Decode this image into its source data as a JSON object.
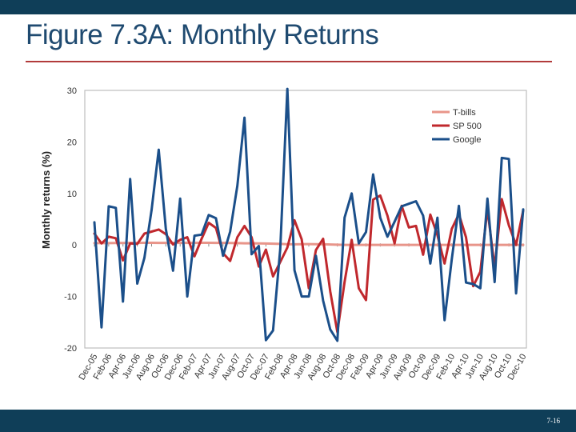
{
  "slide": {
    "title": "Figure 7.3A: Monthly Returns",
    "page_number": "7-16"
  },
  "colors": {
    "header_bar": "#0f3e58",
    "title_text": "#1f4a70",
    "title_rule": "#b23b3b",
    "tbills": "#e8958a",
    "sp500": "#c0282d",
    "google": "#1b4f8a"
  },
  "chart_data": {
    "type": "line",
    "title": "",
    "xlabel": "",
    "ylabel": "Monthly returns (%)",
    "ylim": [
      -20,
      30
    ],
    "yticks": [
      -20,
      -10,
      0,
      10,
      20,
      30
    ],
    "grid": false,
    "legend_position": "top-right",
    "x": [
      "Dec-05",
      "Jan-06",
      "Feb-06",
      "Mar-06",
      "Apr-06",
      "May-06",
      "Jun-06",
      "Jul-06",
      "Aug-06",
      "Sep-06",
      "Oct-06",
      "Nov-06",
      "Dec-06",
      "Jan-07",
      "Feb-07",
      "Mar-07",
      "Apr-07",
      "May-07",
      "Jun-07",
      "Jul-07",
      "Aug-07",
      "Sep-07",
      "Oct-07",
      "Nov-07",
      "Dec-07",
      "Jan-08",
      "Feb-08",
      "Mar-08",
      "Apr-08",
      "May-08",
      "Jun-08",
      "Jul-08",
      "Aug-08",
      "Sep-08",
      "Oct-08",
      "Nov-08",
      "Dec-08",
      "Jan-09",
      "Feb-09",
      "Mar-09",
      "Apr-09",
      "May-09",
      "Jun-09",
      "Jul-09",
      "Aug-09",
      "Sep-09",
      "Oct-09",
      "Nov-09",
      "Dec-09",
      "Jan-10",
      "Feb-10",
      "Mar-10",
      "Apr-10",
      "May-10",
      "Jun-10",
      "Jul-10",
      "Aug-10",
      "Sep-10",
      "Oct-10",
      "Nov-10",
      "Dec-10"
    ],
    "xtick_labels": [
      "Dec-05",
      "Feb-06",
      "Apr-06",
      "Jun-06",
      "Aug-06",
      "Oct-06",
      "Dec-06",
      "Feb-07",
      "Apr-07",
      "Jun-07",
      "Aug-07",
      "Oct-07",
      "Dec-07",
      "Feb-08",
      "Apr-08",
      "Jun-08",
      "Aug-08",
      "Oct-08",
      "Dec-08",
      "Feb-09",
      "Apr-09",
      "Jun-09",
      "Aug-09",
      "Oct-09",
      "Dec-09",
      "Feb-10",
      "Apr-10",
      "Jun-10",
      "Aug-10",
      "Oct-10",
      "Dec-10"
    ],
    "series": [
      {
        "name": "T-bills",
        "color": "#e8958a",
        "values": [
          0.35,
          0.35,
          0.36,
          0.38,
          0.39,
          0.4,
          0.41,
          0.42,
          0.42,
          0.41,
          0.41,
          0.4,
          0.4,
          0.41,
          0.41,
          0.42,
          0.42,
          0.41,
          0.4,
          0.38,
          0.36,
          0.33,
          0.32,
          0.3,
          0.28,
          0.25,
          0.2,
          0.15,
          0.12,
          0.15,
          0.17,
          0.15,
          0.14,
          0.1,
          0.05,
          0.02,
          0.01,
          0.01,
          0.01,
          0.02,
          0.02,
          0.01,
          0.01,
          0.01,
          0.01,
          0.01,
          0.01,
          0.01,
          0.01,
          0.01,
          0.01,
          0.01,
          0.01,
          0.01,
          0.01,
          0.01,
          0.01,
          0.01,
          0.01,
          0.01,
          0.01
        ]
      },
      {
        "name": "SP 500",
        "color": "#c0282d",
        "values": [
          2.2,
          0.3,
          1.6,
          1.3,
          -3.0,
          0.3,
          0.2,
          2.2,
          2.6,
          3.0,
          2.1,
          0.1,
          1.0,
          1.5,
          -2.2,
          1.2,
          4.3,
          3.3,
          -1.6,
          -3.1,
          1.5,
          3.7,
          1.5,
          -4.2,
          -0.9,
          -6.1,
          -3.3,
          -0.5,
          4.8,
          1.1,
          -8.4,
          -1.0,
          1.2,
          -9.0,
          -16.9,
          -7.2,
          1.0,
          -8.4,
          -10.7,
          8.8,
          9.6,
          5.7,
          0.3,
          7.6,
          3.4,
          3.7,
          -1.9,
          5.9,
          1.9,
          -3.6,
          3.1,
          6.0,
          1.5,
          -8.0,
          -5.2,
          7.0,
          -4.4,
          8.9,
          3.8,
          0.0,
          6.7
        ]
      },
      {
        "name": "Google",
        "color": "#1b4f8a",
        "values": [
          4.4,
          -16.0,
          7.5,
          7.2,
          -11.0,
          12.8,
          -7.5,
          -2.5,
          6.8,
          18.5,
          3.1,
          -5.0,
          9.0,
          -10.0,
          1.8,
          2.0,
          5.8,
          5.2,
          -2.1,
          2.6,
          11.5,
          24.7,
          -1.8,
          -0.2,
          -18.5,
          -16.6,
          -0.8,
          30.3,
          -4.9,
          -10.0,
          -10.0,
          -2.1,
          -10.8,
          -16.4,
          -18.6,
          5.3,
          10.0,
          0.3,
          2.5,
          13.7,
          5.3,
          1.6,
          4.5,
          7.5,
          8.0,
          8.5,
          5.7,
          -3.6,
          5.3,
          -14.6,
          -2.8,
          7.6,
          -7.3,
          -7.6,
          -8.4,
          9.0,
          -7.2,
          16.9,
          16.7,
          -9.4,
          6.9
        ]
      }
    ]
  }
}
